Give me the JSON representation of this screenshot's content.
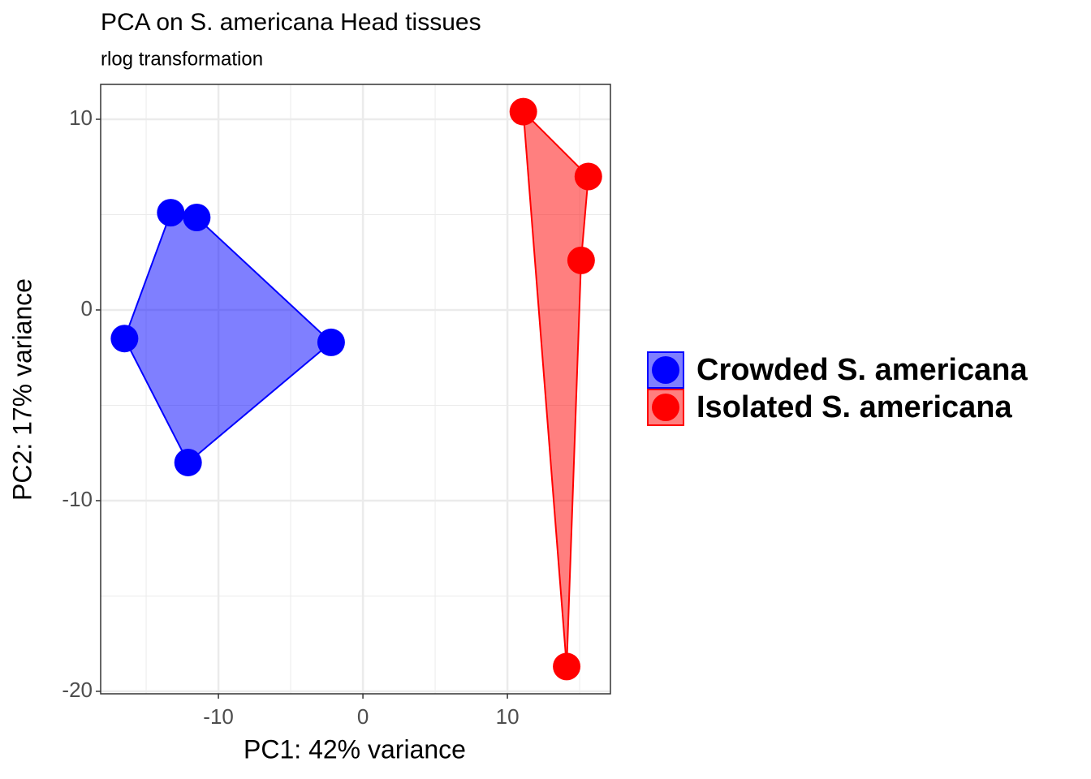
{
  "chart_data": {
    "type": "scatter",
    "title": "PCA on S. americana Head tissues",
    "subtitle": "rlog transformation",
    "x_label": "PC1: 42% variance",
    "y_label": "PC2: 17% variance",
    "xlim": [
      -18.15,
      17.13
    ],
    "ylim": [
      -20.13,
      11.83
    ],
    "xticks": [
      -10,
      0,
      10
    ],
    "yticks": [
      -20,
      -10,
      0,
      10
    ],
    "xminor": [
      -15,
      -5,
      5,
      15
    ],
    "yminor": [
      -15,
      -5,
      5
    ],
    "grid": true,
    "legend": "right",
    "series": [
      {
        "name": "Crowded S. americana",
        "color": "#0000ff",
        "x": [
          -13.3,
          -11.5,
          -16.5,
          -2.2,
          -12.1
        ],
        "values": [
          5.1,
          4.85,
          -1.5,
          -1.7,
          -8.0
        ]
      },
      {
        "name": "Isolated S. americana",
        "color": "#ff0000",
        "x": [
          11.1,
          15.6,
          15.1,
          14.1
        ],
        "values": [
          10.4,
          7.0,
          2.6,
          -18.7
        ]
      }
    ]
  }
}
